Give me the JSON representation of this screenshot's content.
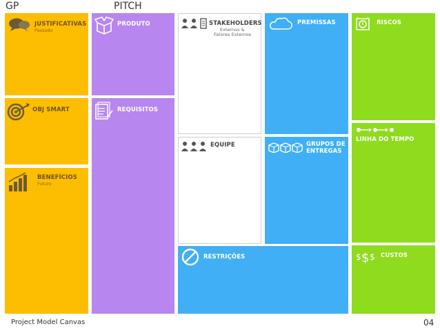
{
  "headers": {
    "gp": "GP",
    "pitch": "PITCH"
  },
  "blocks": {
    "justificativas": {
      "title": "JUSTIFICATIVAS",
      "subtitle": "Passado"
    },
    "obj_smart": {
      "title": "OBJ SMART"
    },
    "beneficios": {
      "title": "BENEFÍCIOS",
      "subtitle": "Futuro"
    },
    "produto": {
      "title": "PRODUTO"
    },
    "requisitos": {
      "title": "REQUISITOS"
    },
    "stakeholders": {
      "title": "STAKEHOLDERS",
      "subtitle_1": "Externos &",
      "subtitle_2": "Fatores Externos"
    },
    "equipe": {
      "title": "EQUIPE"
    },
    "premissas": {
      "title": "PREMISSAS"
    },
    "grupos": {
      "title_1": "GRUPOS DE",
      "title_2": "ENTREGAS"
    },
    "riscos": {
      "title": "RISCOS"
    },
    "linha": {
      "title": "LINHA DO TEMPO"
    },
    "restricoes": {
      "title": "RESTRIÇÕES"
    },
    "custos": {
      "title": "CUSTOS"
    }
  },
  "footer": {
    "title": "Project Model Canvas",
    "page": "04"
  },
  "colors": {
    "yellow": "#fdbd00",
    "purple": "#b786ee",
    "blue": "#40aff5",
    "green": "#8fdb1e",
    "white": "#ffffff"
  }
}
